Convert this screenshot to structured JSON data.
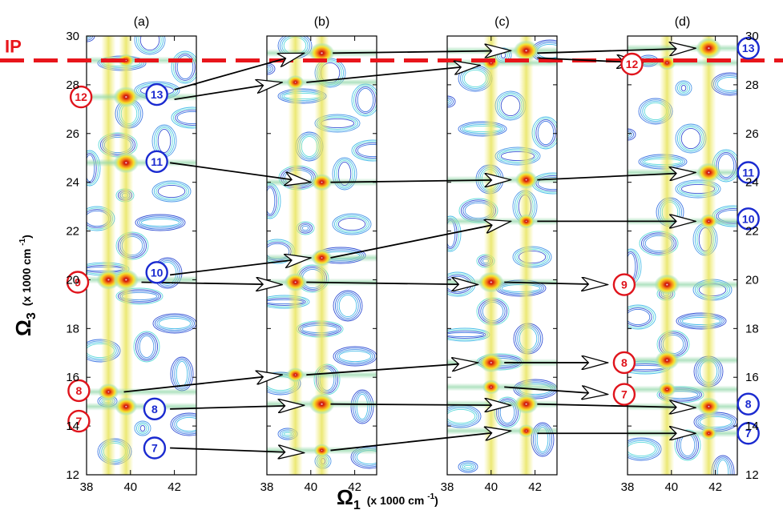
{
  "chart_data": {
    "type": "heatmap",
    "panels": [
      {
        "title": "(a)",
        "peaks": [
          {
            "o1": 39.8,
            "o3": 27.5,
            "s": 1.0
          },
          {
            "o1": 39.8,
            "o3": 24.8,
            "s": 1.0
          },
          {
            "o1": 39.0,
            "o3": 20.0,
            "s": 0.9
          },
          {
            "o1": 39.8,
            "o3": 20.0,
            "s": 1.0
          },
          {
            "o1": 39.0,
            "o3": 15.4,
            "s": 0.7
          },
          {
            "o1": 39.8,
            "o3": 14.8,
            "s": 0.8
          },
          {
            "o1": 39.8,
            "o3": 29.0,
            "s": 0.4
          }
        ]
      },
      {
        "title": "(b)",
        "peaks": [
          {
            "o1": 40.5,
            "o3": 29.3,
            "s": 1.0
          },
          {
            "o1": 39.3,
            "o3": 28.1,
            "s": 0.5
          },
          {
            "o1": 40.5,
            "o3": 24.0,
            "s": 0.7
          },
          {
            "o1": 40.5,
            "o3": 20.9,
            "s": 0.7
          },
          {
            "o1": 39.3,
            "o3": 19.9,
            "s": 0.8
          },
          {
            "o1": 39.3,
            "o3": 16.1,
            "s": 0.5
          },
          {
            "o1": 40.5,
            "o3": 14.9,
            "s": 1.0
          },
          {
            "o1": 40.5,
            "o3": 13.0,
            "s": 0.4
          }
        ]
      },
      {
        "title": "(c)",
        "peaks": [
          {
            "o1": 41.6,
            "o3": 29.4,
            "s": 1.0
          },
          {
            "o1": 40.0,
            "o3": 28.9,
            "s": 0.5
          },
          {
            "o1": 41.6,
            "o3": 24.1,
            "s": 0.8
          },
          {
            "o1": 41.6,
            "o3": 22.4,
            "s": 0.5
          },
          {
            "o1": 40.0,
            "o3": 19.9,
            "s": 1.0
          },
          {
            "o1": 40.0,
            "o3": 16.6,
            "s": 0.9
          },
          {
            "o1": 41.6,
            "o3": 14.9,
            "s": 0.9
          },
          {
            "o1": 40.0,
            "o3": 15.6,
            "s": 0.5
          },
          {
            "o1": 41.6,
            "o3": 13.8,
            "s": 0.4
          }
        ]
      },
      {
        "title": "(d)",
        "peaks": [
          {
            "o1": 41.7,
            "o3": 29.5,
            "s": 1.0
          },
          {
            "o1": 39.8,
            "o3": 28.9,
            "s": 0.5
          },
          {
            "o1": 41.7,
            "o3": 24.4,
            "s": 0.9
          },
          {
            "o1": 41.7,
            "o3": 22.4,
            "s": 0.5
          },
          {
            "o1": 39.8,
            "o3": 19.8,
            "s": 1.0
          },
          {
            "o1": 39.8,
            "o3": 16.7,
            "s": 0.9
          },
          {
            "o1": 41.7,
            "o3": 14.8,
            "s": 0.8
          },
          {
            "o1": 39.8,
            "o3": 15.5,
            "s": 0.5
          },
          {
            "o1": 41.7,
            "o3": 13.7,
            "s": 0.4
          }
        ]
      }
    ],
    "x_ticks": [
      "38",
      "40",
      "42"
    ],
    "y_ticks": [
      "12",
      "14",
      "16",
      "18",
      "20",
      "22",
      "24",
      "26",
      "28",
      "30"
    ],
    "xlim": [
      38,
      43
    ],
    "ylim": [
      12,
      30
    ],
    "xlabel": {
      "symbol": "Ω",
      "sub": "1",
      "unit": "(x 1000 cm",
      "exp": "-1"
    },
    "ylabel": {
      "symbol": "Ω",
      "sub": "3",
      "unit": "(x 1000 cm",
      "exp": "-1"
    },
    "ip_line": {
      "label": "IP",
      "o3": 29.0,
      "color": "#e8151b"
    },
    "badges": [
      {
        "num": "12",
        "color": "red",
        "panel": 0,
        "o1": 37.75,
        "o3": 27.5
      },
      {
        "num": "13",
        "color": "blue",
        "panel": 0,
        "o1": 41.2,
        "o3": 27.6
      },
      {
        "num": "11",
        "color": "blue",
        "panel": 0,
        "o1": 41.2,
        "o3": 24.85
      },
      {
        "num": "9",
        "color": "red",
        "panel": 0,
        "o1": 37.6,
        "o3": 19.9
      },
      {
        "num": "10",
        "color": "blue",
        "panel": 0,
        "o1": 41.2,
        "o3": 20.3
      },
      {
        "num": "8",
        "color": "red",
        "panel": 0,
        "o1": 37.65,
        "o3": 15.45
      },
      {
        "num": "7",
        "color": "red",
        "panel": 0,
        "o1": 37.65,
        "o3": 14.2
      },
      {
        "num": "8",
        "color": "blue",
        "panel": 0,
        "o1": 41.1,
        "o3": 14.7
      },
      {
        "num": "7",
        "color": "blue",
        "panel": 0,
        "o1": 41.1,
        "o3": 13.1
      },
      {
        "num": "12",
        "color": "red",
        "panel": 3,
        "o1": 38.2,
        "o3": 28.85
      },
      {
        "num": "13",
        "color": "blue",
        "panel": 3,
        "o1": 43.5,
        "o3": 29.5
      },
      {
        "num": "11",
        "color": "blue",
        "panel": 3,
        "o1": 43.5,
        "o3": 24.4
      },
      {
        "num": "10",
        "color": "blue",
        "panel": 3,
        "o1": 43.5,
        "o3": 22.5
      },
      {
        "num": "9",
        "color": "red",
        "panel": 3,
        "o1": 37.85,
        "o3": 19.8
      },
      {
        "num": "8",
        "color": "red",
        "panel": 3,
        "o1": 37.85,
        "o3": 16.6
      },
      {
        "num": "7",
        "color": "red",
        "panel": 3,
        "o1": 37.85,
        "o3": 15.3
      },
      {
        "num": "8",
        "color": "blue",
        "panel": 3,
        "o1": 43.5,
        "o3": 14.9
      },
      {
        "num": "7",
        "color": "blue",
        "panel": 3,
        "o1": 43.5,
        "o3": 13.7
      }
    ],
    "arrows": [
      {
        "from": [
          0,
          42.0,
          27.8
        ],
        "to": [
          1,
          39.7,
          29.3
        ]
      },
      {
        "from": [
          0,
          42.0,
          27.4
        ],
        "to": [
          1,
          38.7,
          28.1
        ]
      },
      {
        "from": [
          0,
          41.8,
          24.8
        ],
        "to": [
          1,
          40.0,
          24.0
        ]
      },
      {
        "from": [
          0,
          41.8,
          20.2
        ],
        "to": [
          1,
          40.0,
          20.9
        ]
      },
      {
        "from": [
          0,
          40.5,
          19.9
        ],
        "to": [
          1,
          38.7,
          19.8
        ]
      },
      {
        "from": [
          0,
          39.7,
          15.4
        ],
        "to": [
          1,
          38.7,
          16.1
        ]
      },
      {
        "from": [
          0,
          41.8,
          14.7
        ],
        "to": [
          1,
          39.7,
          14.85
        ]
      },
      {
        "from": [
          0,
          41.8,
          13.1
        ],
        "to": [
          1,
          39.7,
          12.9
        ]
      },
      {
        "from": [
          1,
          41.0,
          29.3
        ],
        "to": [
          2,
          40.9,
          29.4
        ]
      },
      {
        "from": [
          1,
          39.8,
          28.1
        ],
        "to": [
          2,
          39.5,
          28.8
        ]
      },
      {
        "from": [
          1,
          40.9,
          24.0
        ],
        "to": [
          2,
          40.9,
          24.1
        ]
      },
      {
        "from": [
          1,
          40.9,
          20.9
        ],
        "to": [
          2,
          40.9,
          22.4
        ]
      },
      {
        "from": [
          1,
          39.8,
          19.9
        ],
        "to": [
          2,
          39.4,
          19.8
        ]
      },
      {
        "from": [
          1,
          39.8,
          16.1
        ],
        "to": [
          2,
          39.4,
          16.6
        ]
      },
      {
        "from": [
          1,
          40.9,
          14.9
        ],
        "to": [
          2,
          40.9,
          14.85
        ]
      },
      {
        "from": [
          1,
          40.9,
          13.0
        ],
        "to": [
          2,
          40.9,
          13.8
        ]
      },
      {
        "from": [
          2,
          42.1,
          29.3
        ],
        "to": [
          3,
          41.1,
          29.5
        ]
      },
      {
        "from": [
          2,
          42.1,
          29.1
        ],
        "to": [
          3,
          38.7,
          28.9
        ]
      },
      {
        "from": [
          2,
          42.1,
          24.1
        ],
        "to": [
          3,
          41.1,
          24.4
        ]
      },
      {
        "from": [
          2,
          42.1,
          22.4
        ],
        "to": [
          3,
          41.1,
          22.4
        ]
      },
      {
        "from": [
          2,
          40.6,
          19.9
        ],
        "to": [
          3,
          37.1,
          19.8
        ]
      },
      {
        "from": [
          2,
          40.6,
          16.6
        ],
        "to": [
          3,
          37.1,
          16.6
        ]
      },
      {
        "from": [
          2,
          40.6,
          15.6
        ],
        "to": [
          3,
          37.1,
          15.3
        ]
      },
      {
        "from": [
          2,
          42.1,
          14.9
        ],
        "to": [
          3,
          41.1,
          14.75
        ]
      },
      {
        "from": [
          2,
          42.1,
          13.7
        ],
        "to": [
          3,
          41.1,
          13.7
        ]
      }
    ]
  }
}
